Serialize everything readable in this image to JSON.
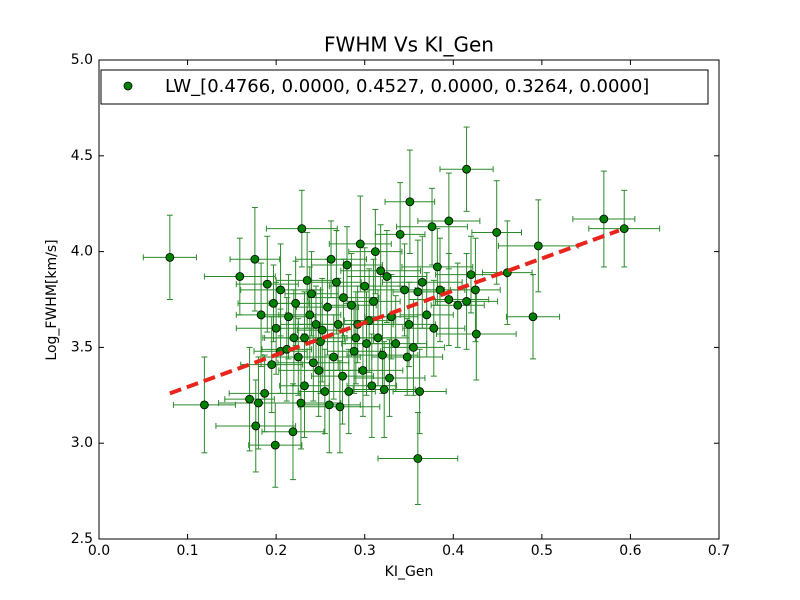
{
  "chart_data": {
    "type": "scatter",
    "title": "FWHM Vs KI_Gen",
    "xlabel": "KI_Gen",
    "ylabel": "Log_FWHM[km/s]",
    "xlim": [
      0,
      0.7
    ],
    "ylim": [
      2.5,
      5.0
    ],
    "xticks": [
      {
        "value": 0,
        "label": "0.0"
      },
      0.1,
      0.2,
      0.3,
      0.4,
      0.5,
      0.6,
      0.7
    ],
    "yticks": [
      2.5,
      {
        "value": 3,
        "label": "3.0"
      },
      3.5,
      {
        "value": 4,
        "label": "4.0"
      },
      4.5,
      {
        "value": 5,
        "label": "5.0"
      }
    ],
    "legend": "upper left",
    "series": [
      {
        "name": "LW_[0.4766, 0.0000, 0.4527, 0.0000, 0.3264, 0.0000]",
        "color": "#008000",
        "errcolor": "#2a8a2a",
        "x": [
          0.08,
          0.119,
          0.159,
          0.176,
          0.177,
          0.199,
          0.219,
          0.229,
          0.351,
          0.36,
          0.415,
          0.395,
          0.376,
          0.449,
          0.496,
          0.49,
          0.57,
          0.593,
          0.461,
          0.426,
          0.362,
          0.19,
          0.197,
          0.183,
          0.2,
          0.205,
          0.195,
          0.187,
          0.17,
          0.18,
          0.214,
          0.22,
          0.225,
          0.232,
          0.228,
          0.24,
          0.235,
          0.245,
          0.25,
          0.248,
          0.255,
          0.258,
          0.262,
          0.268,
          0.27,
          0.265,
          0.275,
          0.28,
          0.285,
          0.29,
          0.288,
          0.295,
          0.3,
          0.305,
          0.298,
          0.31,
          0.315,
          0.32,
          0.308,
          0.325,
          0.33,
          0.335,
          0.328,
          0.34,
          0.345,
          0.35,
          0.355,
          0.348,
          0.36,
          0.365,
          0.37,
          0.378,
          0.382,
          0.385,
          0.395,
          0.405,
          0.415,
          0.42,
          0.425,
          0.272,
          0.282,
          0.26,
          0.242,
          0.212,
          0.205,
          0.222,
          0.238,
          0.292,
          0.302,
          0.318,
          0.312,
          0.322,
          0.276,
          0.252,
          0.232
        ],
        "values": [
          3.97,
          3.2,
          3.87,
          3.96,
          3.09,
          2.99,
          3.06,
          4.12,
          4.26,
          2.92,
          4.43,
          4.16,
          4.13,
          4.1,
          4.03,
          3.66,
          4.17,
          4.12,
          3.89,
          3.57,
          3.27,
          3.83,
          3.73,
          3.67,
          3.6,
          3.48,
          3.41,
          3.26,
          3.23,
          3.21,
          3.66,
          3.55,
          3.45,
          3.3,
          3.21,
          3.78,
          3.85,
          3.62,
          3.53,
          3.38,
          3.27,
          3.71,
          3.96,
          3.84,
          3.62,
          3.45,
          3.35,
          3.93,
          3.72,
          3.55,
          3.48,
          4.04,
          3.82,
          3.64,
          3.38,
          3.74,
          3.55,
          3.46,
          3.3,
          3.87,
          3.66,
          3.52,
          3.34,
          4.09,
          3.8,
          3.62,
          3.5,
          3.45,
          3.79,
          3.84,
          3.67,
          3.6,
          3.92,
          3.8,
          3.75,
          3.72,
          3.74,
          3.88,
          3.8,
          3.19,
          3.27,
          3.2,
          3.42,
          3.49,
          3.8,
          3.73,
          3.67,
          3.62,
          3.52,
          3.9,
          4.0,
          3.28,
          3.76,
          3.59,
          3.55
        ],
        "xerr": [
          0.03,
          0.035,
          0.04,
          0.028,
          0.045,
          0.03,
          0.035,
          0.04,
          0.028,
          0.045,
          0.03,
          0.035,
          0.04,
          0.028,
          0.045,
          0.03,
          0.035,
          0.04,
          0.028,
          0.045,
          0.03,
          0.035,
          0.04,
          0.028,
          0.045,
          0.03,
          0.035,
          0.04,
          0.028,
          0.045,
          0.03,
          0.035,
          0.04,
          0.028,
          0.045,
          0.03,
          0.035,
          0.04,
          0.028,
          0.045,
          0.03,
          0.035,
          0.04,
          0.028,
          0.045,
          0.03,
          0.035,
          0.04,
          0.028,
          0.045,
          0.03,
          0.035,
          0.04,
          0.028,
          0.045,
          0.03,
          0.035,
          0.04,
          0.028,
          0.045,
          0.03,
          0.035,
          0.04,
          0.028,
          0.045,
          0.03,
          0.035,
          0.04,
          0.028,
          0.045,
          0.03,
          0.035,
          0.04,
          0.028,
          0.045,
          0.03,
          0.035,
          0.04,
          0.028,
          0.045,
          0.03,
          0.035,
          0.04,
          0.028,
          0.045,
          0.03,
          0.035,
          0.04,
          0.028,
          0.045,
          0.03,
          0.035,
          0.04,
          0.028,
          0.045
        ],
        "yerr": [
          0.22,
          0.25,
          0.2,
          0.27,
          0.24,
          0.22,
          0.25,
          0.2,
          0.27,
          0.24,
          0.22,
          0.25,
          0.2,
          0.27,
          0.24,
          0.22,
          0.25,
          0.2,
          0.27,
          0.24,
          0.22,
          0.25,
          0.2,
          0.27,
          0.24,
          0.22,
          0.25,
          0.2,
          0.27,
          0.24,
          0.22,
          0.25,
          0.2,
          0.27,
          0.24,
          0.22,
          0.25,
          0.2,
          0.27,
          0.24,
          0.22,
          0.25,
          0.2,
          0.27,
          0.24,
          0.22,
          0.25,
          0.2,
          0.27,
          0.24,
          0.22,
          0.25,
          0.2,
          0.27,
          0.24,
          0.22,
          0.25,
          0.2,
          0.27,
          0.24,
          0.22,
          0.25,
          0.2,
          0.27,
          0.24,
          0.22,
          0.25,
          0.2,
          0.27,
          0.24,
          0.22,
          0.25,
          0.2,
          0.27,
          0.24,
          0.22,
          0.25,
          0.2,
          0.27,
          0.24,
          0.22,
          0.25,
          0.2,
          0.27,
          0.24,
          0.22,
          0.25,
          0.2,
          0.27,
          0.24,
          0.22,
          0.25,
          0.2,
          0.27,
          0.24
        ]
      }
    ],
    "fit_line": {
      "x": [
        0.08,
        0.587
      ],
      "values": [
        3.26,
        4.11
      ],
      "color": "#e8251c"
    }
  }
}
